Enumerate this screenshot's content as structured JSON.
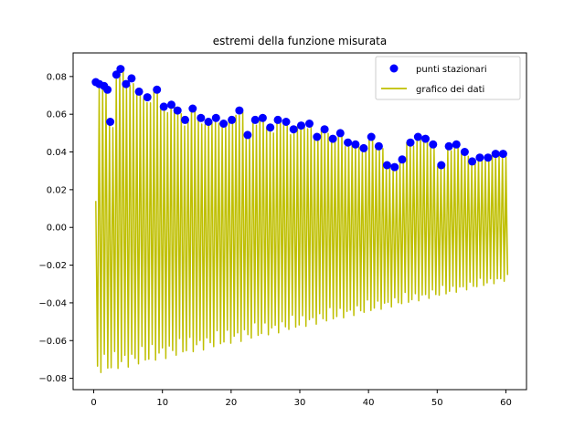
{
  "chart_data": {
    "type": "line",
    "title": "estremi della funzione misurata",
    "xlabel": "",
    "ylabel": "",
    "xlim": [
      -3.0,
      63.0
    ],
    "ylim": [
      -0.086,
      0.0925
    ],
    "xticks": [
      0,
      10,
      20,
      30,
      40,
      50,
      60
    ],
    "yticks": [
      -0.08,
      -0.06,
      -0.04,
      -0.02,
      0.0,
      0.02,
      0.04,
      0.06,
      0.08
    ],
    "ytick_labels": [
      "−0.08",
      "−0.06",
      "−0.04",
      "−0.02",
      "0.00",
      "0.02",
      "0.04",
      "0.06",
      "0.08"
    ],
    "grid": false,
    "legend_position": "upper right",
    "series": [
      {
        "name": "punti stazionari",
        "kind": "scatter",
        "color": "#0000ff",
        "note": "local maxima of the measured signal",
        "x": [
          0.3,
          0.8,
          1.5,
          2.0,
          2.4,
          3.3,
          3.9,
          4.7,
          5.5,
          6.6,
          7.8,
          9.2,
          10.2,
          11.3,
          12.2,
          13.3,
          14.4,
          15.6,
          16.7,
          17.8,
          18.9,
          20.1,
          21.2,
          22.4,
          23.5,
          24.6,
          25.7,
          26.8,
          28.0,
          29.1,
          30.2,
          31.4,
          32.5,
          33.6,
          34.8,
          35.9,
          37.0,
          38.1,
          39.3,
          40.4,
          41.5,
          42.7,
          43.8,
          44.9,
          46.1,
          47.2,
          48.3,
          49.4,
          50.6,
          51.7,
          52.8,
          54.0,
          55.1,
          56.2,
          57.4,
          58.5,
          59.6
        ],
        "y": [
          0.077,
          0.076,
          0.075,
          0.073,
          0.056,
          0.081,
          0.084,
          0.076,
          0.079,
          0.072,
          0.069,
          0.073,
          0.064,
          0.065,
          0.062,
          0.057,
          0.063,
          0.058,
          0.056,
          0.058,
          0.055,
          0.057,
          0.062,
          0.049,
          0.057,
          0.058,
          0.053,
          0.057,
          0.056,
          0.052,
          0.054,
          0.055,
          0.048,
          0.052,
          0.047,
          0.05,
          0.045,
          0.044,
          0.042,
          0.048,
          0.043,
          0.033,
          0.032,
          0.036,
          0.045,
          0.048,
          0.047,
          0.044,
          0.033,
          0.043,
          0.044,
          0.04,
          0.035,
          0.037,
          0.037,
          0.039,
          0.039
        ]
      },
      {
        "name": "grafico dei dati",
        "kind": "line",
        "color": "#bfbf00",
        "note": "oscillating signal with decreasing positive amplitude; minima roughly -0.078 at start rising to about -0.028 near x=60"
      }
    ]
  }
}
